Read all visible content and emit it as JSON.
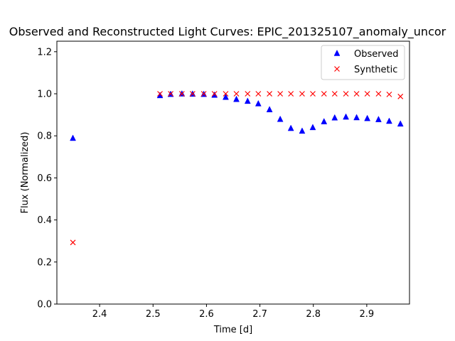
{
  "chart_data": {
    "type": "scatter",
    "title": "Observed and Reconstructed Light Curves: EPIC_201325107_anomaly_uncor",
    "xlabel": "Time [d]",
    "ylabel": "Flux (Normalized)",
    "xlim": [
      2.32,
      2.98
    ],
    "ylim": [
      0.0,
      1.25
    ],
    "xticks": [
      2.4,
      2.5,
      2.6,
      2.7,
      2.8,
      2.9
    ],
    "xtick_labels": [
      "2.4",
      "2.5",
      "2.6",
      "2.7",
      "2.8",
      "2.9"
    ],
    "yticks": [
      0.0,
      0.2,
      0.4,
      0.6,
      0.8,
      1.0,
      1.2
    ],
    "ytick_labels": [
      "0.0",
      "0.2",
      "0.4",
      "0.6",
      "0.8",
      "1.0",
      "1.2"
    ],
    "grid": false,
    "legend_position": "upper right",
    "series": [
      {
        "name": "Observed",
        "marker": "triangle",
        "color": "#0000ff",
        "x": [
          2.35,
          2.513,
          2.533,
          2.554,
          2.574,
          2.595,
          2.615,
          2.636,
          2.656,
          2.677,
          2.697,
          2.718,
          2.738,
          2.758,
          2.779,
          2.799,
          2.82,
          2.84,
          2.861,
          2.881,
          2.901,
          2.922,
          2.942,
          2.963
        ],
        "y": [
          0.789,
          0.992,
          0.998,
          1.0,
          0.999,
          0.998,
          0.994,
          0.984,
          0.974,
          0.965,
          0.953,
          0.925,
          0.879,
          0.836,
          0.823,
          0.84,
          0.868,
          0.886,
          0.89,
          0.887,
          0.883,
          0.878,
          0.87,
          0.857
        ]
      },
      {
        "name": "Synthetic",
        "marker": "x",
        "color": "#ff0000",
        "x": [
          2.35,
          2.513,
          2.533,
          2.554,
          2.574,
          2.595,
          2.615,
          2.636,
          2.656,
          2.677,
          2.697,
          2.718,
          2.738,
          2.758,
          2.779,
          2.799,
          2.82,
          2.84,
          2.861,
          2.881,
          2.901,
          2.922,
          2.942,
          2.963
        ],
        "y": [
          0.293,
          1.0,
          1.0,
          1.0,
          1.0,
          1.0,
          1.0,
          1.0,
          1.0,
          1.0,
          1.0,
          1.0,
          1.0,
          1.0,
          1.0,
          1.0,
          1.0,
          1.0,
          1.0,
          1.0,
          1.0,
          1.0,
          0.997,
          0.987
        ]
      }
    ]
  }
}
